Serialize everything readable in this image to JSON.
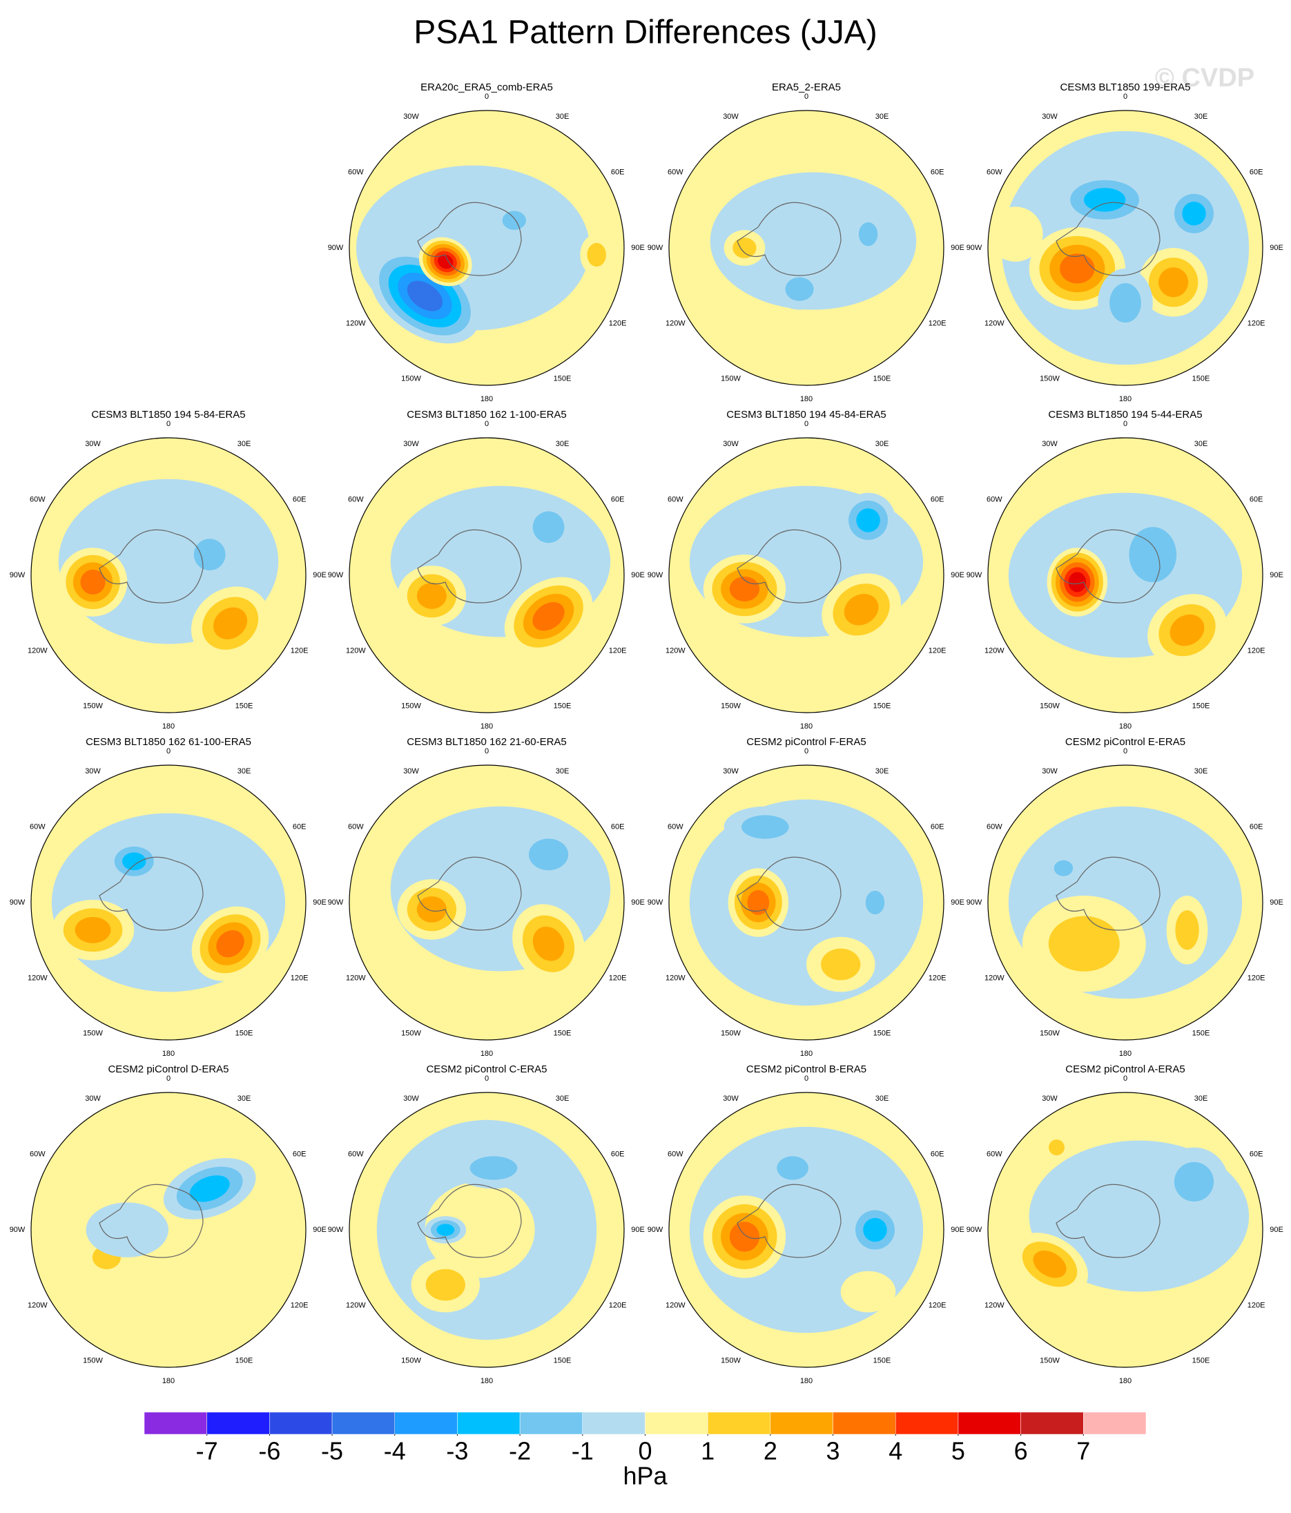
{
  "title": "PSA1 Pattern Differences (JJA)",
  "watermark": "© CVDP",
  "lon_labels": [
    "0",
    "30E",
    "60E",
    "90E",
    "120E",
    "150E",
    "180",
    "150W",
    "120W",
    "90W",
    "60W",
    "30W"
  ],
  "panels": [
    {
      "title": "ERA20c_ERA5_comb-ERA5"
    },
    {
      "title": "ERA5_2-ERA5"
    },
    {
      "title": "CESM3 BLT1850 199-ERA5"
    },
    {
      "title": "CESM3 BLT1850 194 5-84-ERA5"
    },
    {
      "title": "CESM3 BLT1850 162 1-100-ERA5"
    },
    {
      "title": "CESM3 BLT1850 194 45-84-ERA5"
    },
    {
      "title": "CESM3 BLT1850 194 5-44-ERA5"
    },
    {
      "title": "CESM3 BLT1850 162 61-100-ERA5"
    },
    {
      "title": "CESM3 BLT1850 162 21-60-ERA5"
    },
    {
      "title": "CESM2 piControl F-ERA5"
    },
    {
      "title": "CESM2 piControl E-ERA5"
    },
    {
      "title": "CESM2 piControl D-ERA5"
    },
    {
      "title": "CESM2 piControl C-ERA5"
    },
    {
      "title": "CESM2 piControl B-ERA5"
    },
    {
      "title": "CESM2 piControl A-ERA5"
    }
  ],
  "colorbar": {
    "levels": [
      -7,
      -6,
      -5,
      -4,
      -3,
      -2,
      -1,
      0,
      1,
      2,
      3,
      4,
      5,
      6,
      7
    ],
    "colors": [
      "#8a2be2",
      "#1e1eff",
      "#2c4be6",
      "#3173e8",
      "#1e9cff",
      "#00bfff",
      "#73c6f0",
      "#b4dcf0",
      "#fff59b",
      "#ffd027",
      "#ffa500",
      "#ff7300",
      "#ff2d00",
      "#e60000",
      "#c81e1e",
      "#ffb4b4"
    ],
    "units": "hPa"
  }
}
